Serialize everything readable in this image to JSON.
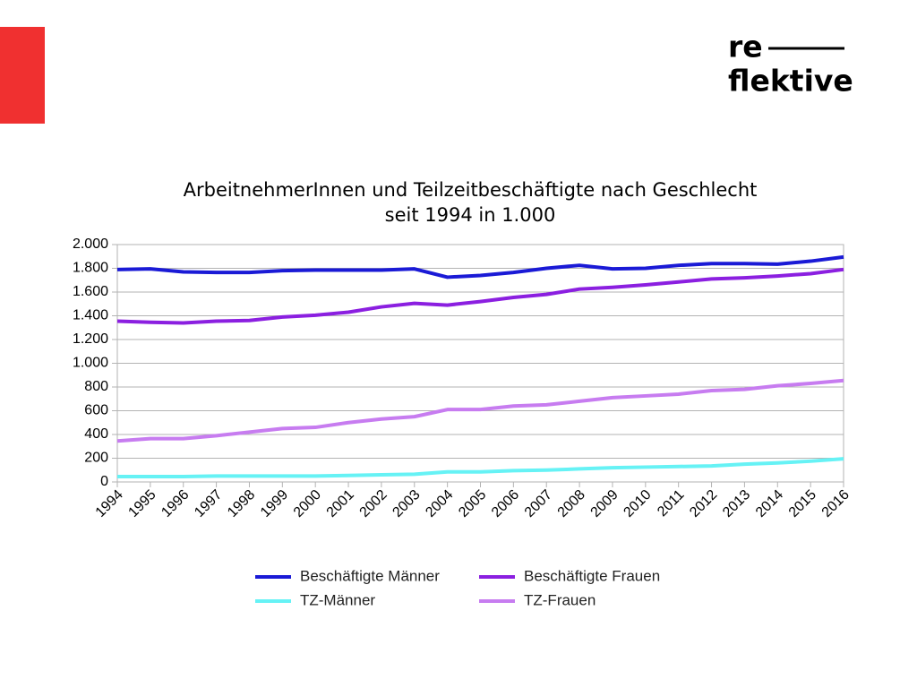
{
  "logo": {
    "line1": "re",
    "line2": "flektive"
  },
  "chart_data": {
    "type": "line",
    "title": "ArbeitnehmerInnen und Teilzeitbeschäftigte nach Geschlecht",
    "subtitle": "seit 1994 in 1.000",
    "categories": [
      "1994",
      "1995",
      "1996",
      "1997",
      "1998",
      "1999",
      "2000",
      "2001",
      "2002",
      "2003",
      "2004",
      "2005",
      "2006",
      "2007",
      "2008",
      "2009",
      "2010",
      "2011",
      "2012",
      "2013",
      "2014",
      "2015",
      "2016"
    ],
    "series": [
      {
        "name": "Beschäftigte Männer",
        "color": "#1a1ad6",
        "values": [
          1790,
          1795,
          1770,
          1765,
          1765,
          1780,
          1785,
          1785,
          1785,
          1795,
          1725,
          1740,
          1765,
          1800,
          1825,
          1795,
          1800,
          1825,
          1840,
          1840,
          1835,
          1860,
          1895
        ]
      },
      {
        "name": "Beschäftigte Frauen",
        "color": "#8b1fe0",
        "values": [
          1355,
          1345,
          1340,
          1355,
          1360,
          1390,
          1405,
          1430,
          1475,
          1505,
          1490,
          1520,
          1555,
          1580,
          1625,
          1640,
          1660,
          1685,
          1710,
          1720,
          1735,
          1755,
          1790
        ]
      },
      {
        "name": "TZ-Männer",
        "color": "#66f2f5",
        "values": [
          45,
          45,
          45,
          50,
          50,
          50,
          50,
          55,
          60,
          65,
          85,
          85,
          95,
          100,
          110,
          120,
          125,
          130,
          135,
          150,
          160,
          175,
          195
        ]
      },
      {
        "name": "TZ-Frauen",
        "color": "#c77cf0",
        "values": [
          345,
          365,
          365,
          390,
          420,
          450,
          460,
          500,
          530,
          550,
          610,
          610,
          640,
          650,
          680,
          710,
          725,
          740,
          770,
          780,
          810,
          830,
          855
        ]
      }
    ],
    "ylim": [
      0,
      2000
    ],
    "yticks": [
      0,
      200,
      400,
      600,
      800,
      {
        "value": 1000,
        "label": "1.000"
      },
      {
        "value": 1200,
        "label": "1.200"
      },
      {
        "value": 1400,
        "label": "1.400"
      },
      {
        "value": 1600,
        "label": "1.600"
      },
      {
        "value": 1800,
        "label": "1.800"
      },
      {
        "value": 2000,
        "label": "2.000"
      }
    ],
    "grid": true,
    "legend": "bottom"
  }
}
